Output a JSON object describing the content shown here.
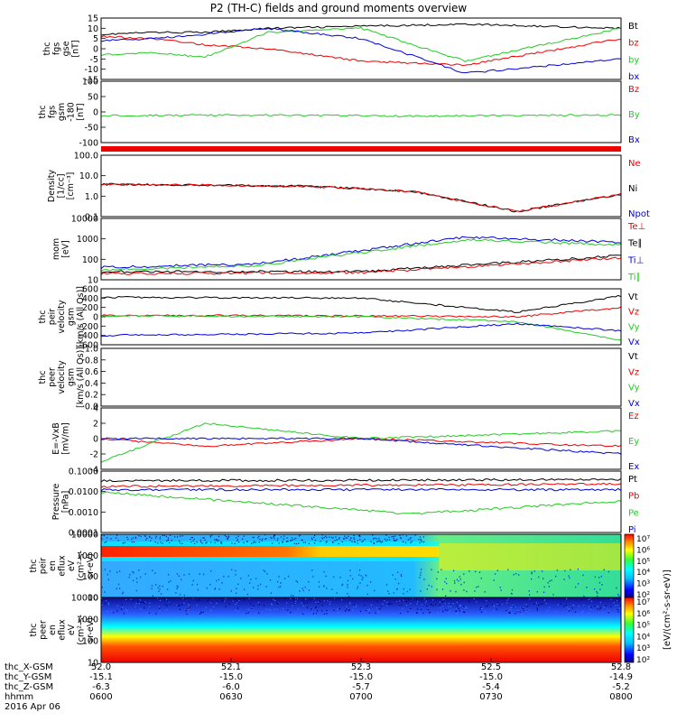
{
  "title": "P2 (TH-C) fields and ground moments overview",
  "colors": {
    "black": "#000000",
    "red": "#ee0000",
    "green": "#22cc22",
    "blue": "#0000dd"
  },
  "axis_time": {
    "rows": [
      {
        "label": "thc_X-GSM",
        "values": [
          "52.0",
          "52.1",
          "52.3",
          "52.5",
          "52.8"
        ]
      },
      {
        "label": "thc_Y-GSM",
        "values": [
          "-15.1",
          "-15.0",
          "-15.0",
          "-15.0",
          "-14.9"
        ]
      },
      {
        "label": "thc_Z-GSM",
        "values": [
          "-6.3",
          "-6.0",
          "-5.7",
          "-5.4",
          "-5.2"
        ]
      },
      {
        "label": "hhmm",
        "values": [
          "0600",
          "0630",
          "0700",
          "0730",
          "0800"
        ]
      }
    ],
    "date": "2016 Apr 06"
  },
  "colorbar": {
    "label": "[eV/(cm²-s-sr-eV)]",
    "top_ticks": [
      "10⁷",
      "10⁶",
      "10⁵",
      "10⁴",
      "10³",
      "10²"
    ],
    "bottom_ticks": [
      "10⁷",
      "10⁶",
      "10⁵",
      "10⁴",
      "10³",
      "10²"
    ]
  },
  "chart_data": [
    {
      "id": "fgs",
      "type": "line",
      "ylabel": [
        "thc",
        "fgs",
        "gse",
        "[nT]"
      ],
      "ylim": [
        -15,
        15
      ],
      "yticks": [
        "15",
        "10",
        "5",
        "0",
        "-5",
        "-10",
        "-15"
      ],
      "legend": [
        {
          "name": "Bt",
          "color": "#000000"
        },
        {
          "name": "bz",
          "color": "#ee0000"
        },
        {
          "name": "by",
          "color": "#22cc22"
        },
        {
          "name": "bx",
          "color": "#0000dd"
        }
      ],
      "series": [
        {
          "name": "Bt",
          "color": "#000000",
          "x": [
            0,
            0.1,
            0.2,
            0.32,
            0.5,
            0.7,
            1
          ],
          "y": [
            7,
            8,
            8,
            10,
            11,
            12,
            10
          ]
        },
        {
          "name": "bz",
          "color": "#ee0000",
          "x": [
            0,
            0.1,
            0.2,
            0.32,
            0.5,
            0.7,
            1
          ],
          "y": [
            6,
            5,
            2,
            0,
            -6,
            -8,
            5
          ]
        },
        {
          "name": "by",
          "color": "#22cc22",
          "x": [
            0,
            0.1,
            0.2,
            0.32,
            0.5,
            0.7,
            1
          ],
          "y": [
            -3,
            -2,
            -4,
            8,
            10,
            -6,
            10
          ]
        },
        {
          "name": "bx",
          "color": "#0000dd",
          "x": [
            0,
            0.1,
            0.2,
            0.32,
            0.5,
            0.7,
            1
          ],
          "y": [
            4,
            5,
            7,
            10,
            5,
            -12,
            -5
          ]
        }
      ]
    },
    {
      "id": "fgs_gsm",
      "type": "line",
      "ylabel": [
        "thc",
        "fgs",
        "gsm",
        "-180",
        "[nT]"
      ],
      "ylim": [
        -150,
        100
      ],
      "yticks": [
        "100",
        "50",
        "0",
        "-50",
        "-100"
      ],
      "legend": [
        {
          "name": "Bz",
          "color": "#ee0000"
        },
        {
          "name": "By",
          "color": "#22cc22"
        },
        {
          "name": "Bx",
          "color": "#0000dd"
        }
      ],
      "series": [
        {
          "name": "By",
          "color": "#22cc22",
          "x": [
            0,
            0.3,
            0.6,
            1
          ],
          "y": [
            -40,
            -38,
            -42,
            -38
          ]
        }
      ]
    },
    {
      "id": "density",
      "type": "line",
      "ylabel": [
        "Density",
        "[1/cc]",
        "[cm⁻³]"
      ],
      "log": true,
      "ylim": [
        0.05,
        200
      ],
      "yticks": [
        "100.0",
        "10.0",
        "1.0",
        "0.1"
      ],
      "legend": [
        {
          "name": "Ne",
          "color": "#ee0000"
        },
        {
          "name": "Ni",
          "color": "#000000"
        },
        {
          "name": "Npot",
          "color": "#0000dd"
        }
      ],
      "series": [
        {
          "name": "Ni",
          "color": "#000000",
          "x": [
            0,
            0.2,
            0.4,
            0.6,
            0.8,
            1
          ],
          "y": [
            4,
            3.5,
            3,
            1.5,
            0.1,
            1
          ]
        },
        {
          "name": "Ne",
          "color": "#ee0000",
          "x": [
            0,
            0.2,
            0.4,
            0.6,
            0.8,
            1
          ],
          "y": [
            4,
            3.5,
            3,
            1.5,
            0.1,
            1
          ]
        }
      ]
    },
    {
      "id": "temp",
      "type": "line",
      "ylabel": [
        "mom",
        "[eV]"
      ],
      "log": true,
      "ylim": [
        10,
        10000
      ],
      "yticks": [
        "10000",
        "1000",
        "100",
        "10"
      ],
      "legend": [
        {
          "name": "Te⊥",
          "color": "#ee0000"
        },
        {
          "name": "Te∥",
          "color": "#000000"
        },
        {
          "name": "Ti⊥",
          "color": "#0000dd"
        },
        {
          "name": "Ti∥",
          "color": "#22cc22"
        }
      ],
      "series": [
        {
          "name": "Ti⊥",
          "color": "#0000dd",
          "x": [
            0,
            0.3,
            0.7,
            1
          ],
          "y": [
            40,
            60,
            1200,
            700
          ]
        },
        {
          "name": "Ti∥",
          "color": "#22cc22",
          "x": [
            0,
            0.3,
            0.7,
            1
          ],
          "y": [
            30,
            50,
            900,
            500
          ]
        },
        {
          "name": "Te∥",
          "color": "#000000",
          "x": [
            0,
            0.5,
            1
          ],
          "y": [
            25,
            25,
            150
          ]
        },
        {
          "name": "Te⊥",
          "color": "#ee0000",
          "x": [
            0,
            0.5,
            1
          ],
          "y": [
            20,
            22,
            120
          ]
        }
      ]
    },
    {
      "id": "peir_vel",
      "type": "line",
      "ylabel": [
        "thc",
        "peir",
        "velocity",
        "gsm",
        "[km/s (All Qs)]"
      ],
      "ylim": [
        -600,
        600
      ],
      "yticks": [
        "600",
        "400",
        "200",
        "0",
        "-200",
        "-400",
        "-600"
      ],
      "legend": [
        {
          "name": "Vt",
          "color": "#000000"
        },
        {
          "name": "Vz",
          "color": "#ee0000"
        },
        {
          "name": "Vy",
          "color": "#22cc22"
        },
        {
          "name": "Vx",
          "color": "#0000dd"
        }
      ],
      "series": [
        {
          "name": "Vt",
          "color": "#000000",
          "x": [
            0,
            0.5,
            0.8,
            1
          ],
          "y": [
            420,
            400,
            100,
            450
          ]
        },
        {
          "name": "Vz",
          "color": "#ee0000",
          "x": [
            0,
            0.5,
            0.8,
            1
          ],
          "y": [
            30,
            20,
            0,
            200
          ]
        },
        {
          "name": "Vy",
          "color": "#22cc22",
          "x": [
            0,
            0.5,
            0.8,
            1
          ],
          "y": [
            20,
            0,
            -100,
            -500
          ]
        },
        {
          "name": "Vx",
          "color": "#0000dd",
          "x": [
            0,
            0.5,
            0.8,
            1
          ],
          "y": [
            -400,
            -350,
            -150,
            -300
          ]
        }
      ]
    },
    {
      "id": "peer_vel",
      "type": "line",
      "ylabel": [
        "thc",
        "peer",
        "velocity",
        "gsm",
        "[km/s (All Qs)]"
      ],
      "ylim": [
        0,
        1
      ],
      "yticks": [
        "1.0",
        "0.8",
        "0.6",
        "0.4",
        "0.2",
        "0.0"
      ],
      "legend": [
        {
          "name": "Vt",
          "color": "#000000"
        },
        {
          "name": "Vz",
          "color": "#ee0000"
        },
        {
          "name": "Vy",
          "color": "#22cc22"
        },
        {
          "name": "Vx",
          "color": "#0000dd"
        }
      ],
      "series": []
    },
    {
      "id": "efield",
      "type": "line",
      "ylabel": [
        "E=-VxB",
        "[mV/m]"
      ],
      "ylim": [
        -4,
        4
      ],
      "yticks": [
        "4",
        "2",
        "0",
        "-2",
        "-4"
      ],
      "legend": [
        {
          "name": "Ez",
          "color": "#ee0000"
        },
        {
          "name": "Ey",
          "color": "#22cc22"
        },
        {
          "name": "Ex",
          "color": "#0000dd"
        }
      ],
      "series": [
        {
          "name": "Ez",
          "color": "#ee0000",
          "x": [
            0,
            0.2,
            0.5,
            1
          ],
          "y": [
            0,
            -1,
            0,
            -1
          ]
        },
        {
          "name": "Ey",
          "color": "#22cc22",
          "x": [
            0,
            0.2,
            0.5,
            1
          ],
          "y": [
            -3,
            2,
            0,
            1
          ]
        },
        {
          "name": "Ex",
          "color": "#0000dd",
          "x": [
            0,
            0.2,
            0.5,
            1
          ],
          "y": [
            0,
            0,
            0,
            -2
          ]
        }
      ]
    },
    {
      "id": "pressure",
      "type": "line",
      "ylabel": [
        "Pressure",
        "[nPa]"
      ],
      "log": true,
      "ylim": [
        0.0001,
        0.2
      ],
      "yticks": [
        "0.1000",
        "0.0100",
        "0.0010",
        "0.0001"
      ],
      "legend": [
        {
          "name": "Pt",
          "color": "#000000"
        },
        {
          "name": "Pb",
          "color": "#ee0000"
        },
        {
          "name": "Pe",
          "color": "#22cc22"
        },
        {
          "name": "Pi",
          "color": "#0000dd"
        }
      ],
      "series": [
        {
          "name": "Pt",
          "color": "#000000",
          "x": [
            0,
            1
          ],
          "y": [
            0.06,
            0.07
          ]
        },
        {
          "name": "Pb",
          "color": "#ee0000",
          "x": [
            0,
            1
          ],
          "y": [
            0.03,
            0.04
          ]
        },
        {
          "name": "Pe",
          "color": "#22cc22",
          "x": [
            0,
            0.6,
            1
          ],
          "y": [
            0.015,
            0.001,
            0.005
          ]
        },
        {
          "name": "Pi",
          "color": "#0000dd",
          "x": [
            0,
            1
          ],
          "y": [
            0.02,
            0.02
          ]
        }
      ]
    },
    {
      "id": "peir_en",
      "type": "heatmap",
      "ylabel": [
        "thc",
        "peir",
        "en",
        "eflux",
        "eV",
        "(cm²-s-",
        "sr-eV)"
      ],
      "yticks": [
        "10000",
        "1000",
        "100",
        "10"
      ]
    },
    {
      "id": "peer_en",
      "type": "heatmap",
      "ylabel": [
        "thc",
        "peer",
        "en",
        "eflux",
        "eV",
        "(cm²-s-",
        "sr-eV)"
      ],
      "yticks": [
        "10000",
        "1000",
        "100",
        "10"
      ]
    }
  ]
}
